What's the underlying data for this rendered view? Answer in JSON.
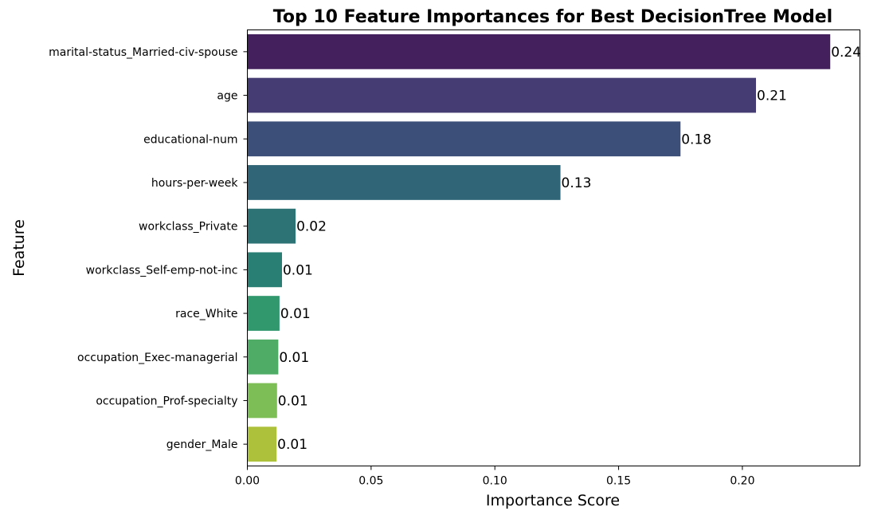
{
  "chart_data": {
    "type": "bar",
    "orientation": "horizontal",
    "title": "Top 10 Feature Importances for Best DecisionTree Model",
    "xlabel": "Importance Score",
    "ylabel": "Feature",
    "xlim": [
      0,
      0.2475
    ],
    "xticks": [
      0.0,
      0.05,
      0.1,
      0.15,
      0.2
    ],
    "xtick_labels": [
      "0.00",
      "0.05",
      "0.10",
      "0.15",
      "0.20"
    ],
    "grid": false,
    "categories": [
      "marital-status_Married-civ-spouse",
      "age",
      "educational-num",
      "hours-per-week",
      "workclass_Private",
      "workclass_Self-emp-not-inc",
      "race_White",
      "occupation_Exec-managerial",
      "occupation_Prof-specialty",
      "gender_Male"
    ],
    "values": [
      0.2355,
      0.2055,
      0.175,
      0.1265,
      0.0195,
      0.014,
      0.013,
      0.0125,
      0.012,
      0.0118
    ],
    "data_labels": [
      "0.24",
      "0.21",
      "0.18",
      "0.13",
      "0.02",
      "0.01",
      "0.01",
      "0.01",
      "0.01",
      "0.01"
    ],
    "colors": [
      "#44205d",
      "#453c73",
      "#3c4f78",
      "#306577",
      "#2d7275",
      "#2a7f74",
      "#31976d",
      "#4fac67",
      "#7ebe56",
      "#adc23a"
    ]
  }
}
